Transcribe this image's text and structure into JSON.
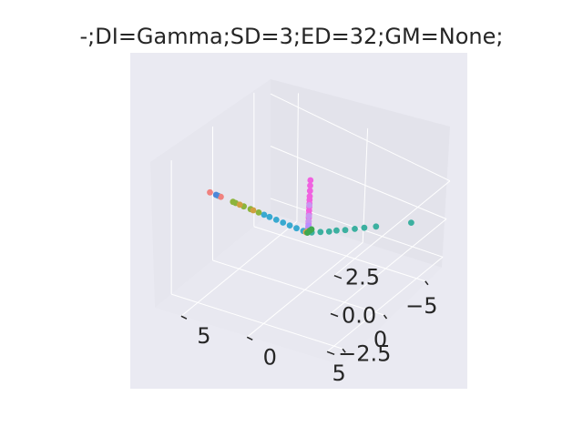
{
  "chart_data": {
    "type": "scatter",
    "projection": "3d",
    "title": "-;DI=Gamma;SD=3;ED=32;GM=None;",
    "xlabel": "",
    "ylabel": "",
    "zlabel": "",
    "grid": true,
    "legend": "none",
    "background": "#eaeaf2",
    "axes": {
      "x": {
        "ticks": [
          -5,
          0,
          5
        ],
        "tick_labels": [
          "−5",
          "0",
          "5"
        ],
        "range": [
          -7,
          7
        ]
      },
      "y": {
        "ticks": [
          0,
          5
        ],
        "tick_labels": [
          "0",
          "5"
        ],
        "range": [
          -6,
          7
        ]
      },
      "z": {
        "ticks": [
          -2.5,
          0.0,
          2.5
        ],
        "tick_labels": [
          "−2.5",
          "0.0",
          "2.5"
        ],
        "range": [
          -3.2,
          3.2
        ]
      }
    },
    "series": [
      {
        "color": "#f062e0",
        "points": [
          [
            -0.1,
            0.0,
            2.9
          ],
          [
            -0.1,
            0.0,
            2.6
          ],
          [
            -0.1,
            0.0,
            2.3
          ],
          [
            -0.1,
            0.0,
            2.0
          ],
          [
            -0.1,
            0.0,
            1.8
          ],
          [
            -0.1,
            0.0,
            1.6
          ],
          [
            -0.1,
            0.0,
            1.4
          ],
          [
            -0.1,
            0.0,
            1.2
          ],
          [
            -0.1,
            0.0,
            1.0
          ],
          [
            -0.1,
            0.0,
            0.8
          ],
          [
            -0.1,
            0.0,
            0.6
          ],
          [
            -0.1,
            0.0,
            0.45
          ],
          [
            -0.1,
            0.0,
            0.3
          ],
          [
            -0.1,
            0.0,
            0.2
          ],
          [
            -0.1,
            0.0,
            0.1
          ]
        ]
      },
      {
        "color": "#c994f0",
        "points": [
          [
            -0.1,
            0.0,
            1.5
          ],
          [
            -0.1,
            0.0,
            0.9
          ],
          [
            -0.1,
            0.0,
            0.6
          ]
        ]
      },
      {
        "color": "#b88fff",
        "points": [
          [
            -0.1,
            0.0,
            0.35
          ],
          [
            -0.1,
            0.0,
            0.15
          ]
        ]
      },
      {
        "color": "#39a9d0",
        "points": [
          [
            0.0,
            0.3,
            0.0
          ],
          [
            0.0,
            0.8,
            0.0
          ],
          [
            0.0,
            1.3,
            0.0
          ],
          [
            0.0,
            1.8,
            0.0
          ],
          [
            0.0,
            2.3,
            0.0
          ],
          [
            0.0,
            2.8,
            0.0
          ],
          [
            0.0,
            3.2,
            0.0
          ],
          [
            0.0,
            6.6,
            0.0
          ]
        ]
      },
      {
        "color": "#8cb43c",
        "points": [
          [
            0.0,
            3.6,
            0.0
          ],
          [
            0.0,
            4.2,
            0.0
          ],
          [
            0.0,
            4.7,
            0.0
          ],
          [
            0.0,
            5.3,
            0.0
          ],
          [
            0.0,
            5.5,
            0.0
          ]
        ]
      },
      {
        "color": "#f0827f",
        "points": [
          [
            0.0,
            6.4,
            0.0
          ],
          [
            0.0,
            7.2,
            0.0
          ]
        ]
      },
      {
        "color": "#4c87d8",
        "points": [
          [
            0.0,
            6.75,
            0.0
          ]
        ]
      },
      {
        "color": "#cfa040",
        "points": [
          [
            0.0,
            4.0,
            0.0
          ],
          [
            0.0,
            5.0,
            0.0
          ]
        ]
      },
      {
        "color": "#e8a04a",
        "points": [
          [
            0.0,
            0.1,
            0.0
          ],
          [
            -0.1,
            0.0,
            0.05
          ]
        ]
      },
      {
        "color": "#3cb0a0",
        "points": [
          [
            -0.2,
            -0.2,
            0.0
          ],
          [
            -0.6,
            -0.6,
            0.0
          ],
          [
            -1.0,
            -1.0,
            0.0
          ],
          [
            -1.4,
            -1.3,
            0.0
          ],
          [
            -1.8,
            -1.7,
            0.0
          ],
          [
            -2.3,
            -2.1,
            0.0
          ],
          [
            -2.8,
            -2.5,
            0.0
          ],
          [
            -3.4,
            -3.0,
            0.0
          ],
          [
            -5.2,
            -4.5,
            0.0
          ]
        ]
      },
      {
        "color": "#40a850",
        "points": [
          [
            -0.5,
            0.0,
            0.0
          ],
          [
            -0.3,
            0.0,
            0.0
          ],
          [
            0.0,
            0.0,
            0.0
          ]
        ]
      }
    ]
  }
}
